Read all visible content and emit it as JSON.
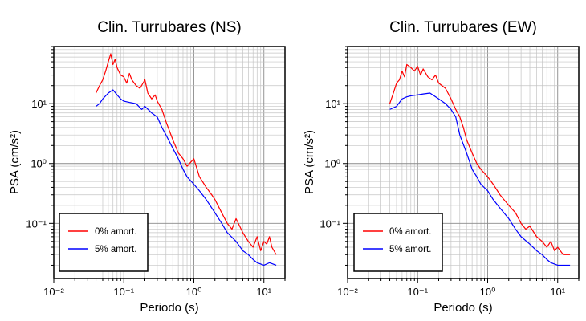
{
  "chart_data": [
    {
      "type": "line",
      "title": "Clin. Turrubares (NS)",
      "xlabel": "Periodo (s)",
      "ylabel": "PSA (cm/s²)",
      "xscale": "log",
      "yscale": "log",
      "xlim": [
        0.01,
        20
      ],
      "ylim": [
        0.012,
        90
      ],
      "x_ticks": [
        "10⁻²",
        "10⁻¹",
        "10⁰",
        "10¹"
      ],
      "y_ticks": [
        "10⁻¹",
        "10⁰",
        "10¹"
      ],
      "grid": true,
      "legend_position": "bottom-left",
      "series": [
        {
          "name": "0% amort.",
          "color": "#ff0000",
          "points": [
            [
              0.04,
              15
            ],
            [
              0.045,
              20
            ],
            [
              0.05,
              25
            ],
            [
              0.055,
              35
            ],
            [
              0.06,
              50
            ],
            [
              0.065,
              68
            ],
            [
              0.07,
              45
            ],
            [
              0.075,
              55
            ],
            [
              0.08,
              40
            ],
            [
              0.09,
              30
            ],
            [
              0.1,
              28
            ],
            [
              0.11,
              22
            ],
            [
              0.12,
              32
            ],
            [
              0.13,
              25
            ],
            [
              0.15,
              20
            ],
            [
              0.17,
              18
            ],
            [
              0.2,
              25
            ],
            [
              0.22,
              15
            ],
            [
              0.25,
              12
            ],
            [
              0.28,
              14
            ],
            [
              0.3,
              11
            ],
            [
              0.35,
              8
            ],
            [
              0.4,
              5
            ],
            [
              0.5,
              2.5
            ],
            [
              0.6,
              1.5
            ],
            [
              0.7,
              1.2
            ],
            [
              0.8,
              0.9
            ],
            [
              1.0,
              1.2
            ],
            [
              1.2,
              0.6
            ],
            [
              1.5,
              0.4
            ],
            [
              1.8,
              0.3
            ],
            [
              2.0,
              0.25
            ],
            [
              2.5,
              0.15
            ],
            [
              3.0,
              0.1
            ],
            [
              3.5,
              0.08
            ],
            [
              4.0,
              0.12
            ],
            [
              5.0,
              0.07
            ],
            [
              6.0,
              0.05
            ],
            [
              7.0,
              0.04
            ],
            [
              8.0,
              0.06
            ],
            [
              9.0,
              0.035
            ],
            [
              10.0,
              0.05
            ],
            [
              11.0,
              0.045
            ],
            [
              12.0,
              0.06
            ],
            [
              13.0,
              0.04
            ],
            [
              15.0,
              0.03
            ]
          ]
        },
        {
          "name": "5% amort.",
          "color": "#0000ff",
          "points": [
            [
              0.04,
              9
            ],
            [
              0.045,
              10
            ],
            [
              0.05,
              12
            ],
            [
              0.06,
              15
            ],
            [
              0.07,
              17
            ],
            [
              0.08,
              14
            ],
            [
              0.09,
              12
            ],
            [
              0.1,
              11
            ],
            [
              0.12,
              10.5
            ],
            [
              0.15,
              10
            ],
            [
              0.18,
              8
            ],
            [
              0.2,
              9
            ],
            [
              0.25,
              7
            ],
            [
              0.3,
              6
            ],
            [
              0.35,
              4
            ],
            [
              0.4,
              3
            ],
            [
              0.5,
              1.8
            ],
            [
              0.6,
              1.2
            ],
            [
              0.7,
              0.8
            ],
            [
              0.8,
              0.6
            ],
            [
              1.0,
              0.45
            ],
            [
              1.2,
              0.35
            ],
            [
              1.5,
              0.25
            ],
            [
              2.0,
              0.15
            ],
            [
              2.5,
              0.1
            ],
            [
              3.0,
              0.07
            ],
            [
              4.0,
              0.05
            ],
            [
              5.0,
              0.035
            ],
            [
              6.0,
              0.03
            ],
            [
              7.0,
              0.025
            ],
            [
              8.0,
              0.022
            ],
            [
              10.0,
              0.02
            ],
            [
              12.0,
              0.022
            ],
            [
              15.0,
              0.02
            ]
          ]
        }
      ]
    },
    {
      "type": "line",
      "title": "Clin. Turrubares (EW)",
      "xlabel": "Periodo (s)",
      "ylabel": "PSA (cm/s²)",
      "xscale": "log",
      "yscale": "log",
      "xlim": [
        0.01,
        20
      ],
      "ylim": [
        0.012,
        90
      ],
      "x_ticks": [
        "10⁻²",
        "10⁻¹",
        "10⁰",
        "10¹"
      ],
      "y_ticks": [
        "10⁻¹",
        "10⁰",
        "10¹"
      ],
      "grid": true,
      "legend_position": "bottom-left",
      "series": [
        {
          "name": "0% amort.",
          "color": "#ff0000",
          "points": [
            [
              0.04,
              10
            ],
            [
              0.045,
              15
            ],
            [
              0.05,
              22
            ],
            [
              0.055,
              25
            ],
            [
              0.06,
              35
            ],
            [
              0.065,
              28
            ],
            [
              0.07,
              45
            ],
            [
              0.08,
              40
            ],
            [
              0.09,
              35
            ],
            [
              0.1,
              42
            ],
            [
              0.11,
              30
            ],
            [
              0.12,
              38
            ],
            [
              0.14,
              28
            ],
            [
              0.16,
              25
            ],
            [
              0.18,
              30
            ],
            [
              0.2,
              22
            ],
            [
              0.25,
              18
            ],
            [
              0.3,
              12
            ],
            [
              0.35,
              8
            ],
            [
              0.4,
              6
            ],
            [
              0.45,
              4
            ],
            [
              0.5,
              2.5
            ],
            [
              0.6,
              1.5
            ],
            [
              0.7,
              1.0
            ],
            [
              0.8,
              0.8
            ],
            [
              1.0,
              0.6
            ],
            [
              1.2,
              0.45
            ],
            [
              1.5,
              0.3
            ],
            [
              2.0,
              0.2
            ],
            [
              2.5,
              0.15
            ],
            [
              3.0,
              0.1
            ],
            [
              3.5,
              0.08
            ],
            [
              4.0,
              0.09
            ],
            [
              5.0,
              0.06
            ],
            [
              6.0,
              0.05
            ],
            [
              7.0,
              0.04
            ],
            [
              8.0,
              0.05
            ],
            [
              9.0,
              0.035
            ],
            [
              10.0,
              0.04
            ],
            [
              12.0,
              0.03
            ],
            [
              15.0,
              0.03
            ]
          ]
        },
        {
          "name": "5% amort.",
          "color": "#0000ff",
          "points": [
            [
              0.04,
              8
            ],
            [
              0.05,
              9
            ],
            [
              0.06,
              12
            ],
            [
              0.07,
              13
            ],
            [
              0.08,
              13.5
            ],
            [
              0.1,
              14
            ],
            [
              0.12,
              14.5
            ],
            [
              0.15,
              15
            ],
            [
              0.2,
              12
            ],
            [
              0.25,
              10
            ],
            [
              0.3,
              8
            ],
            [
              0.35,
              6
            ],
            [
              0.4,
              3
            ],
            [
              0.5,
              1.5
            ],
            [
              0.6,
              0.8
            ],
            [
              0.7,
              0.6
            ],
            [
              0.8,
              0.45
            ],
            [
              1.0,
              0.35
            ],
            [
              1.2,
              0.25
            ],
            [
              1.5,
              0.18
            ],
            [
              2.0,
              0.12
            ],
            [
              2.5,
              0.08
            ],
            [
              3.0,
              0.06
            ],
            [
              4.0,
              0.045
            ],
            [
              5.0,
              0.035
            ],
            [
              6.0,
              0.03
            ],
            [
              7.0,
              0.025
            ],
            [
              8.0,
              0.022
            ],
            [
              10.0,
              0.02
            ],
            [
              12.0,
              0.02
            ],
            [
              15.0,
              0.02
            ]
          ]
        }
      ]
    }
  ]
}
